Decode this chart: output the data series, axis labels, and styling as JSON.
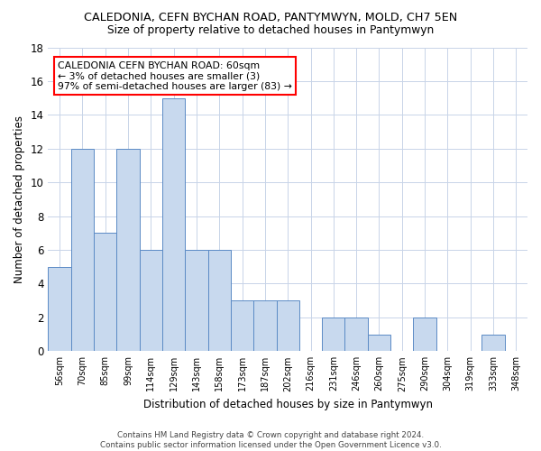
{
  "title1": "CALEDONIA, CEFN BYCHAN ROAD, PANTYMWYN, MOLD, CH7 5EN",
  "title2": "Size of property relative to detached houses in Pantymwyn",
  "xlabel": "Distribution of detached houses by size in Pantymwyn",
  "ylabel": "Number of detached properties",
  "categories": [
    "56sqm",
    "70sqm",
    "85sqm",
    "99sqm",
    "114sqm",
    "129sqm",
    "143sqm",
    "158sqm",
    "173sqm",
    "187sqm",
    "202sqm",
    "216sqm",
    "231sqm",
    "246sqm",
    "260sqm",
    "275sqm",
    "290sqm",
    "304sqm",
    "319sqm",
    "333sqm",
    "348sqm"
  ],
  "values": [
    5,
    12,
    7,
    12,
    6,
    15,
    6,
    6,
    3,
    3,
    3,
    0,
    2,
    2,
    1,
    0,
    2,
    0,
    0,
    1,
    0
  ],
  "bar_color": "#c8d9ee",
  "bar_edge_color": "#5b8ac5",
  "annotation_text": "CALEDONIA CEFN BYCHAN ROAD: 60sqm\n← 3% of detached houses are smaller (3)\n97% of semi-detached houses are larger (83) →",
  "ylim": [
    0,
    18
  ],
  "yticks": [
    0,
    2,
    4,
    6,
    8,
    10,
    12,
    14,
    16,
    18
  ],
  "background_color": "#ffffff",
  "grid_color": "#c8d4e8",
  "footer_line1": "Contains HM Land Registry data © Crown copyright and database right 2024.",
  "footer_line2": "Contains public sector information licensed under the Open Government Licence v3.0."
}
